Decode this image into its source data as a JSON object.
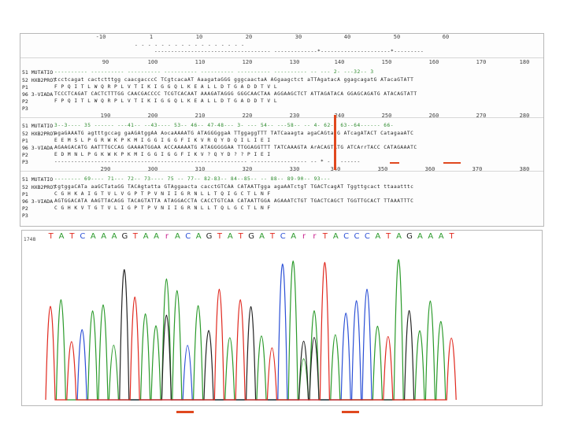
{
  "ruler1": [
    "-10",
    "1",
    "10",
    "20",
    "30",
    "40",
    "50",
    "60"
  ],
  "ruler2": [
    "90",
    "100",
    "110",
    "120",
    "130",
    "140",
    "150",
    "160",
    "170",
    "180"
  ],
  "ruler3": [
    "190",
    "200",
    "210",
    "220",
    "230",
    "240",
    "250",
    "260",
    "270",
    "280"
  ],
  "ruler4": [
    "290",
    "300",
    "310",
    "320",
    "330",
    "340",
    "350",
    "360",
    "370",
    "380"
  ],
  "block0": {
    "seq_top": "- - - -     - -           -   - - - -     -   -     -  - - -",
    "seq_sub": "-----------------------------------  -------------*---------------------*---------"
  },
  "block1": {
    "rows": [
      {
        "label": "51 MUTATIO",
        "seq": "---------- ---------- ---------- ---------- ---------- ---------- ---------- -- --- 2- ---32-- 3"
      },
      {
        "label": "52 HXB2PROT",
        "seq": "tcctcagat cactctttgg caacgacccC TCgtcacaAT AaagataGGG gggcaactaA AGgaagctct aTTAgatacA ggagcagatG ATacaGTATT"
      },
      {
        "label": "P1",
        "seq": "F  P  Q  I  T  L  W  Q  R  P  L  V  T  I  K  I  G  G  Q  L  K  E  A  L  L  D  T  G  A  D  D  T  V  L"
      },
      {
        "label": "96 3-VIADA",
        "seq": "TCCCTCAGAT CACTCTTTGG CAACGACCCC TCGTCACAAT AAAGATAGGG GGGCAACTAA AGGAAGCTCT ATTAGATACA GGAGCAGATG ATACAGTATT"
      },
      {
        "label": "P2",
        "seq": "F  P  Q  I  T  L  W  Q  R  P  L  V  T  I  K  I  G  G  Q  L  K  E  A  L  L  D  T  G  A  D  D  T  V  L"
      },
      {
        "label": "P3",
        "seq": "                                                                                                     "
      }
    ]
  },
  "block2": {
    "rows": [
      {
        "label": "51 MUTATIO",
        "seq": "3--3---- 35 ------ ---41-- --43---- 53-- 46-- 47-48--- 3- --- 54-- ---58-- -- 4- 62-- 63--64------ 66-"
      },
      {
        "label": "52 HXB2PROT",
        "seq": "agaGAAATG agtttgccag gaAGAtggAA AocaAAAATG ATAGGGggaA TTggaggTTT TATCaaagta agaCAGtatG ATcagATACT CatagaaATC"
      },
      {
        "label": "P1",
        "seq": "E  E  M  S  L  P  G  R  W  K  P  K  M  I  G  G  I  G  G  F  I  K  V  R  Q  Y  D  Q  I  L  I  E  I"
      },
      {
        "label": "96 3-VIADA",
        "seq": "AGAAGACATG AATTTGCCAG GAAAATGGAA ACCAAAAATG ATAGGGGGAA TTGGAGGTTT TATCAAAGTA ArACAGTATG ATCArrTACC CATAGAAATC"
      },
      {
        "label": "P2",
        "seq": "E  D  M  N  L  P  G  K  W  K  P  K  M  I  G  G  I  G  G  F  I  K  V  ?  Q  Y  D  ?  ?  P  I  E  I"
      },
      {
        "label": "P3",
        "seq": "----------------------------------------------------------  -----------------   -- *  - -  ------"
      }
    ]
  },
  "block3": {
    "rows": [
      {
        "label": "51 MUTATIO",
        "seq": "-------- 69---- 71--- 72-- 73---- 75 -- 77-- 82-83-- 84--85-- -- 88-- 89-90-- 93---"
      },
      {
        "label": "52 HXB2PROT",
        "seq": "tgtggaCATa aaGCTataGG TACAgtatta GTAggaacta cacctGTCAA CATAATTgga agaAATctgT TGACTcagAT Tggttgcact ttaaatttc"
      },
      {
        "label": "P1",
        "seq": "C  G  H  K  A  I  G  T  V  L  V  G  P  T  P  V  N  I  I  G  R  N  L  L  T  Q  I  G  C  T  L  N  F"
      },
      {
        "label": "96 3-VIADA",
        "seq": "AGTGGACATA AAGTTACAGG TACAGTATTA ATAGGACCTA CACCTGTCAA CATAATTGGA AGAAATCTGT TGACTCAGCT TGGTTGCACT TTAAATTTC"
      },
      {
        "label": "P2",
        "seq": "C  G  H  K  V  T  G  T  V  L  I  G  P  T  P  V  N  I  I  G  R  N  L  L  T  Q  L  G  C  T  L  N  F"
      },
      {
        "label": "P3",
        "seq": "                                                                                                    "
      }
    ]
  },
  "chromatogram": {
    "axis_label": "1748",
    "bases": [
      "T",
      "A",
      "T",
      "C",
      "A",
      "A",
      "A",
      "G",
      "T",
      "A",
      "A",
      "r",
      "A",
      "C",
      "A",
      "G",
      "T",
      "A",
      "T",
      "G",
      "A",
      "T",
      "C",
      "A",
      "r",
      "r",
      "T",
      "A",
      "C",
      "C",
      "C",
      "A",
      "T",
      "A",
      "G",
      "A",
      "A",
      "A",
      "T"
    ],
    "colors": {
      "A": "#2a9a2a",
      "C": "#2a4fd6",
      "G": "#222222",
      "T": "#e0281e",
      "r": "#c81e8c"
    }
  }
}
